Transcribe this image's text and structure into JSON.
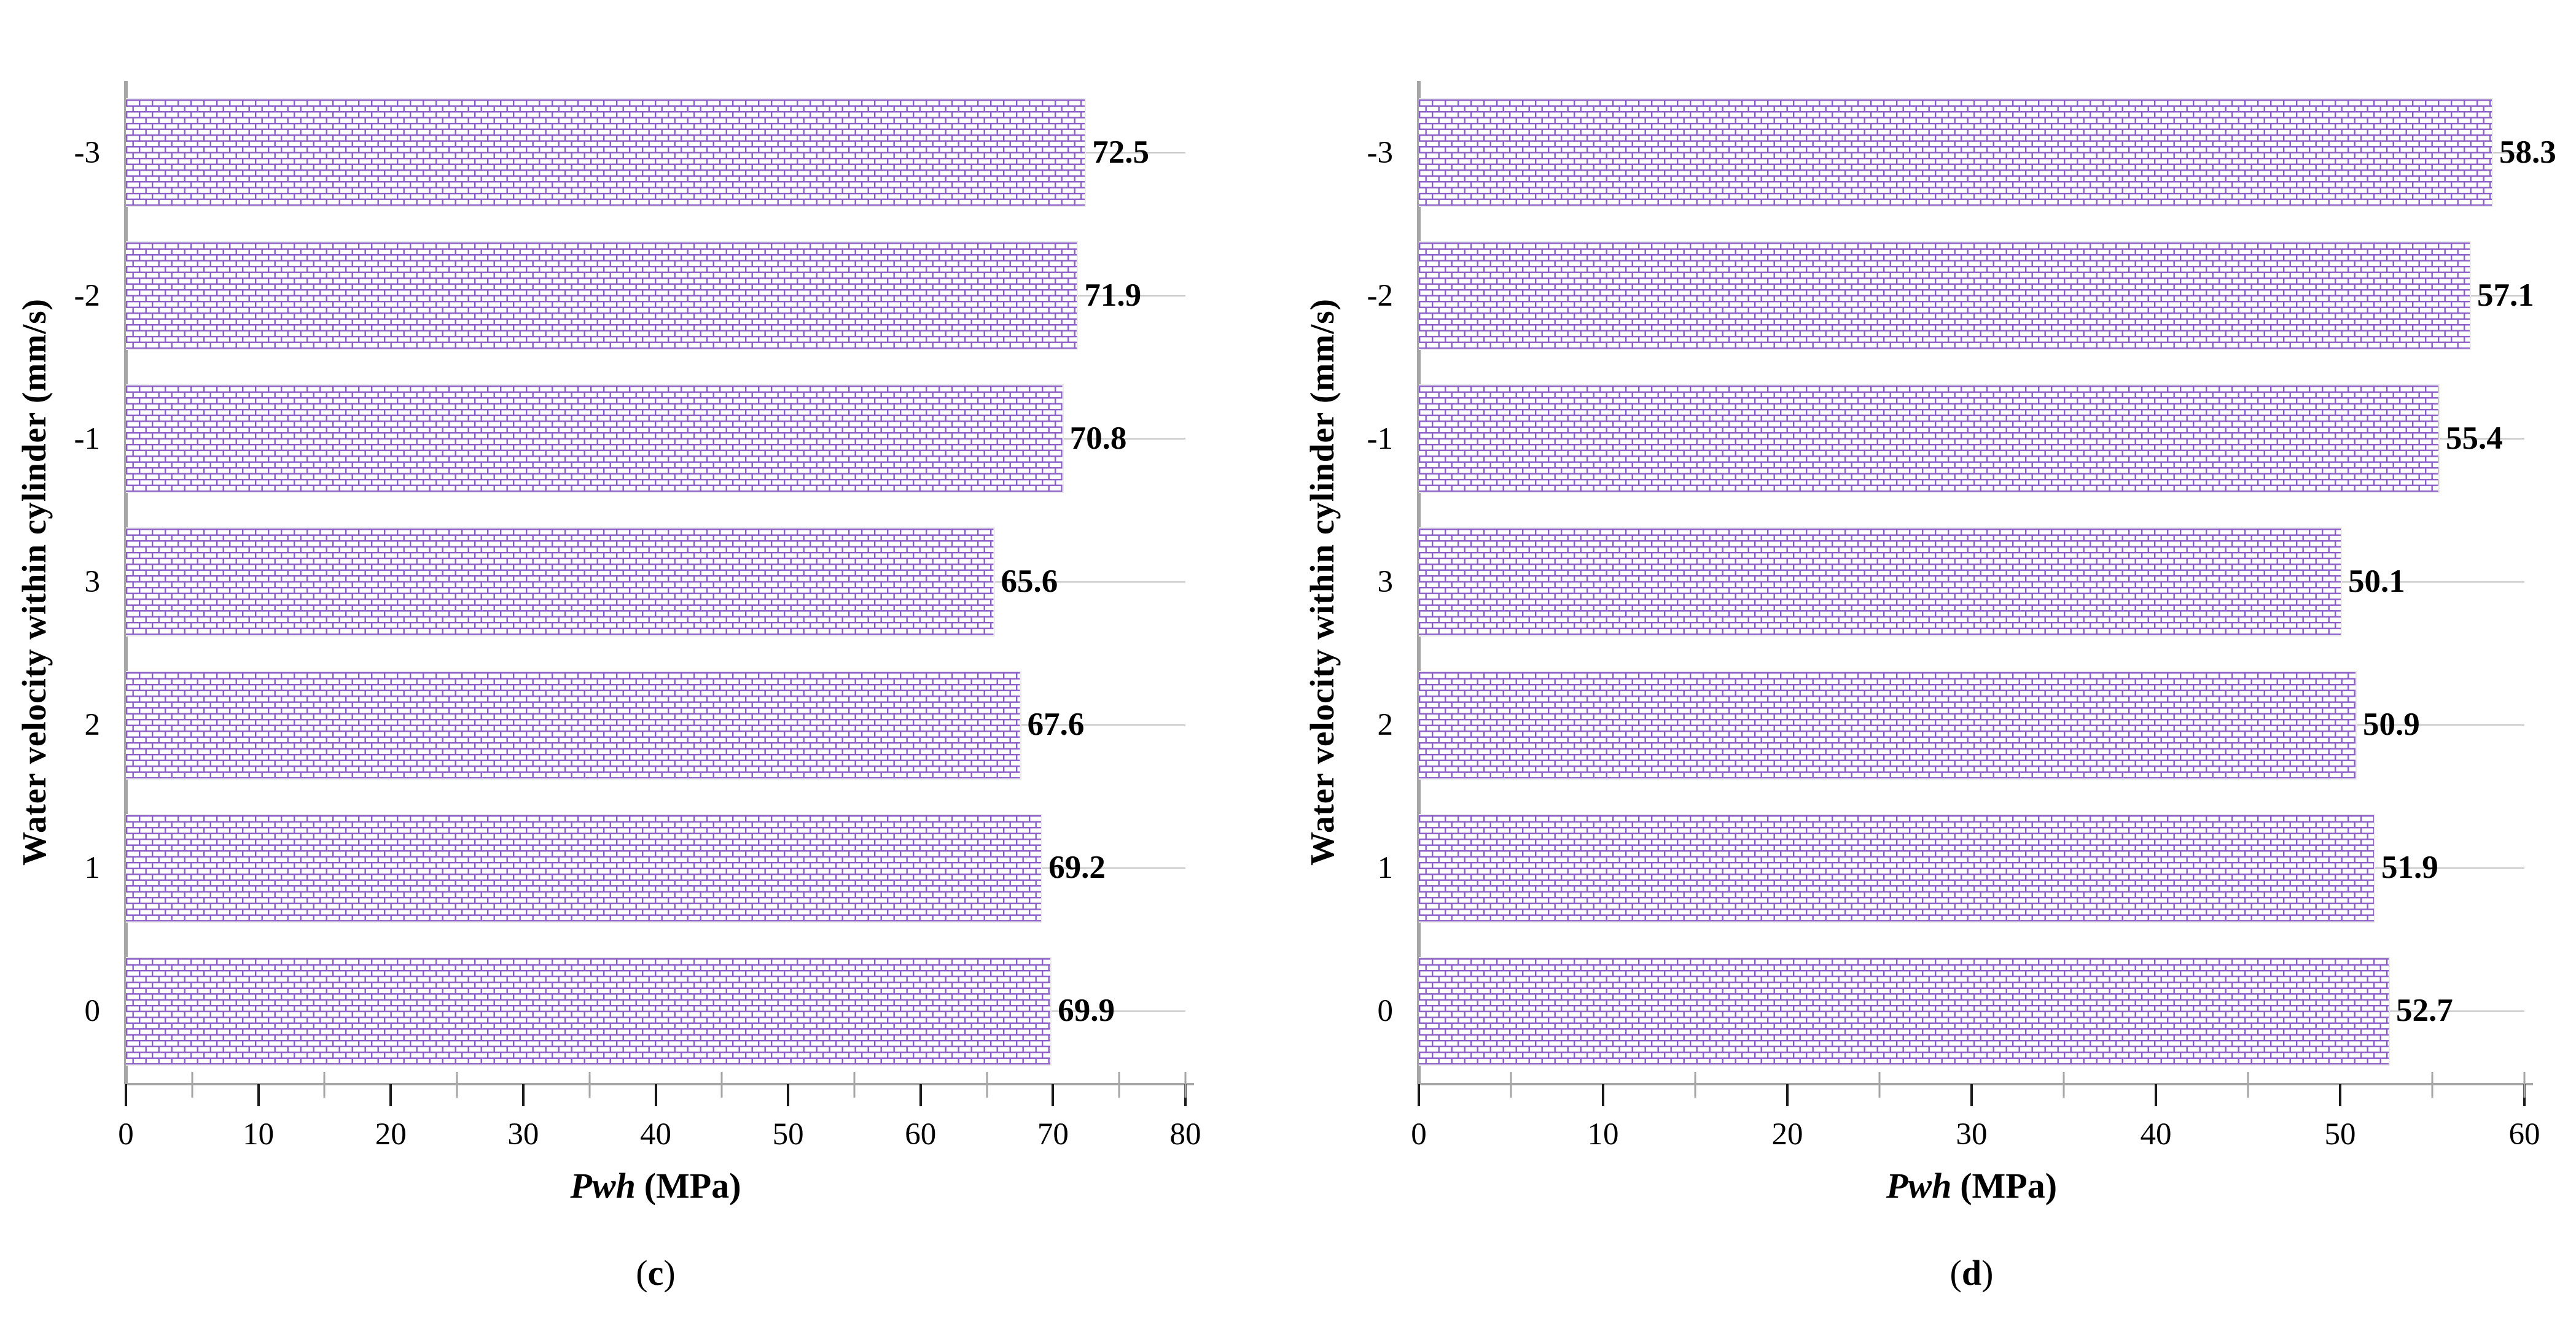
{
  "page": {
    "background": "#ffffff"
  },
  "colors": {
    "bar_pattern_color": "#8a5ec6",
    "grid_line": "#c6c6c6",
    "axis_line": "#a6a6a6",
    "major_tick": "#1a1a1a",
    "text_color": "#000000"
  },
  "chart_data": [
    {
      "type": "bar",
      "orientation": "horizontal",
      "caption_open": "(",
      "caption_letter": "c",
      "caption_close": ")",
      "ylabel": "Water velocity within cylinder (mm/s)",
      "xlabel_italic": "Pwh",
      "xlabel_unit": "(MPa)",
      "categories": [
        "-3",
        "-2",
        "-1",
        "3",
        "2",
        "1",
        "0"
      ],
      "values": [
        72.5,
        71.9,
        70.8,
        65.6,
        67.6,
        69.2,
        69.9
      ],
      "xlim": [
        0,
        80
      ],
      "xticks": [
        0,
        10,
        20,
        30,
        40,
        50,
        60,
        70,
        80
      ],
      "minor_xticks": [
        5,
        15,
        25,
        35,
        45,
        55,
        65,
        75,
        80
      ],
      "grid": "horizontal gridline at each category center",
      "bar_fill": "white bricks with purple mortar pattern",
      "value_labels": [
        "72.5",
        "71.9",
        "70.8",
        "65.6",
        "67.6",
        "69.2",
        "69.9"
      ]
    },
    {
      "type": "bar",
      "orientation": "horizontal",
      "caption_open": "(",
      "caption_letter": "d",
      "caption_close": ")",
      "ylabel": "Water velocity within cylinder (mm/s)",
      "xlabel_italic": "Pwh",
      "xlabel_unit": "(MPa)",
      "categories": [
        "-3",
        "-2",
        "-1",
        "3",
        "2",
        "1",
        "0"
      ],
      "values": [
        58.3,
        57.1,
        55.4,
        50.1,
        50.9,
        51.9,
        52.7
      ],
      "xlim": [
        0,
        60
      ],
      "xticks": [
        0,
        10,
        20,
        30,
        40,
        50,
        60
      ],
      "minor_xticks": [
        5,
        15,
        25,
        35,
        45,
        55,
        60
      ],
      "grid": "horizontal gridline at each category center",
      "bar_fill": "white bricks with purple mortar pattern",
      "value_labels": [
        "58.3",
        "57.1",
        "55.4",
        "50.1",
        "50.9",
        "51.9",
        "52.7"
      ]
    }
  ]
}
